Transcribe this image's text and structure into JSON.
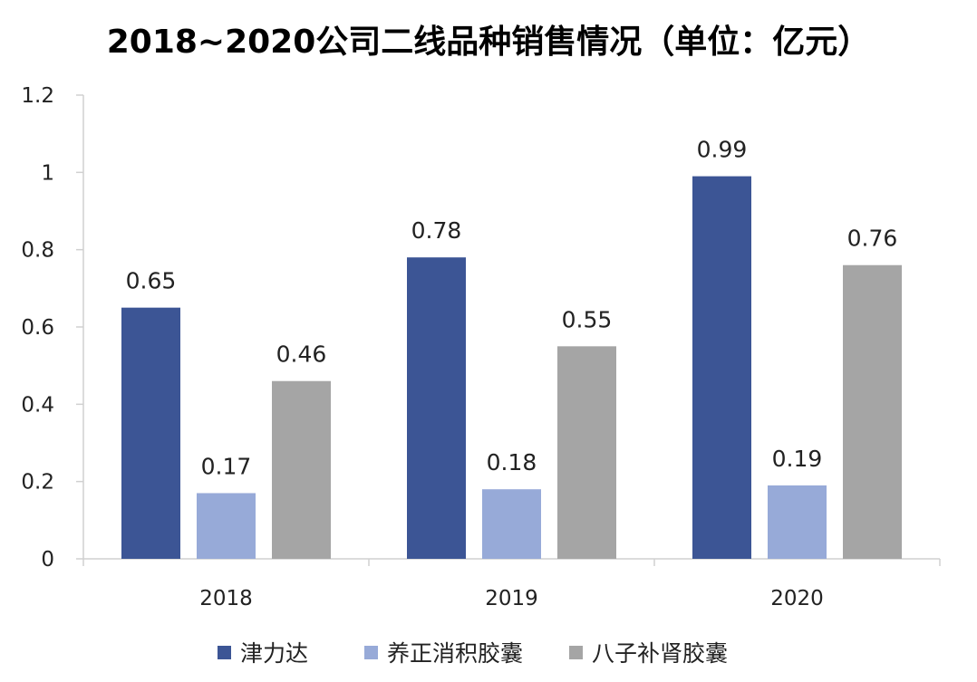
{
  "chart_data": {
    "type": "bar",
    "title": "2018~2020公司二线品种销售情况（单位：亿元）",
    "categories": [
      "2018",
      "2019",
      "2020"
    ],
    "series": [
      {
        "name": "津力达",
        "values": [
          0.65,
          0.78,
          0.99
        ],
        "color": "#3C5595"
      },
      {
        "name": "养正消积胶囊",
        "values": [
          0.17,
          0.18,
          0.19
        ],
        "color": "#97AAD8"
      },
      {
        "name": "八子补肾胶囊",
        "values": [
          0.46,
          0.55,
          0.76
        ],
        "color": "#A5A5A5"
      }
    ],
    "yticks": [
      0,
      0.2,
      0.4,
      0.6,
      0.8,
      1,
      1.2
    ],
    "ytick_labels": [
      "0",
      "0.2",
      "0.4",
      "0.6",
      "0.8",
      "1",
      "1.2"
    ],
    "ylim": [
      0,
      1.2
    ],
    "data_labels": [
      [
        "0.65",
        "0.78",
        "0.99"
      ],
      [
        "0.17",
        "0.18",
        "0.19"
      ],
      [
        "0.46",
        "0.55",
        "0.76"
      ]
    ],
    "grid": false,
    "legend_position": "bottom"
  }
}
